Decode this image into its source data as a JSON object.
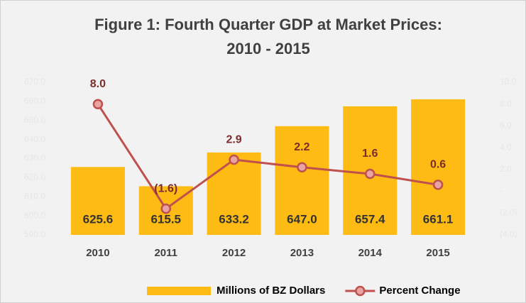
{
  "chart_data": {
    "type": "bar",
    "title": [
      "Figure 1: Fourth Quarter GDP at Market Prices:",
      "2010 - 2015"
    ],
    "categories": [
      "2010",
      "2011",
      "2012",
      "2013",
      "2014",
      "2015"
    ],
    "series": [
      {
        "name": "Millions of BZ Dollars",
        "type": "bar",
        "color": "#fdbb13",
        "axis": "y",
        "values": [
          625.6,
          615.5,
          633.2,
          647.0,
          657.4,
          661.1
        ],
        "value_labels": [
          "625.6",
          "615.5",
          "633.2",
          "647.0",
          "657.4",
          "661.1"
        ]
      },
      {
        "name": "Percent Change",
        "type": "line",
        "color": "#c0504d",
        "axis": "y2",
        "values": [
          8.0,
          -1.6,
          2.9,
          2.2,
          1.6,
          0.6
        ],
        "value_labels": [
          "8.0",
          "(1.6)",
          "2.9",
          "2.2",
          "1.6",
          "0.6"
        ]
      }
    ],
    "ylim": [
      590,
      670
    ],
    "yticks": [
      {
        "value": 590,
        "label": "590.0"
      },
      {
        "value": 600,
        "label": "600.0"
      },
      {
        "value": 610,
        "label": "610.0"
      },
      {
        "value": 620,
        "label": "620.0"
      },
      {
        "value": 630,
        "label": "630.0"
      },
      {
        "value": 640,
        "label": "640.0"
      },
      {
        "value": 650,
        "label": "650.0"
      },
      {
        "value": 660,
        "label": "660.0"
      },
      {
        "value": 670,
        "label": "670.0"
      }
    ],
    "y2lim": [
      -4,
      10
    ],
    "y2ticks": [
      {
        "value": -4,
        "label": "(4.0)"
      },
      {
        "value": -2,
        "label": "(2.0)"
      },
      {
        "value": 0,
        "label": "-"
      },
      {
        "value": 2,
        "label": "2.0"
      },
      {
        "value": 4,
        "label": "4.0"
      },
      {
        "value": 6,
        "label": "6.0"
      },
      {
        "value": 8,
        "label": "8.0"
      },
      {
        "value": 10,
        "label": "10.0"
      }
    ],
    "grid": false,
    "legend": "bottom"
  }
}
